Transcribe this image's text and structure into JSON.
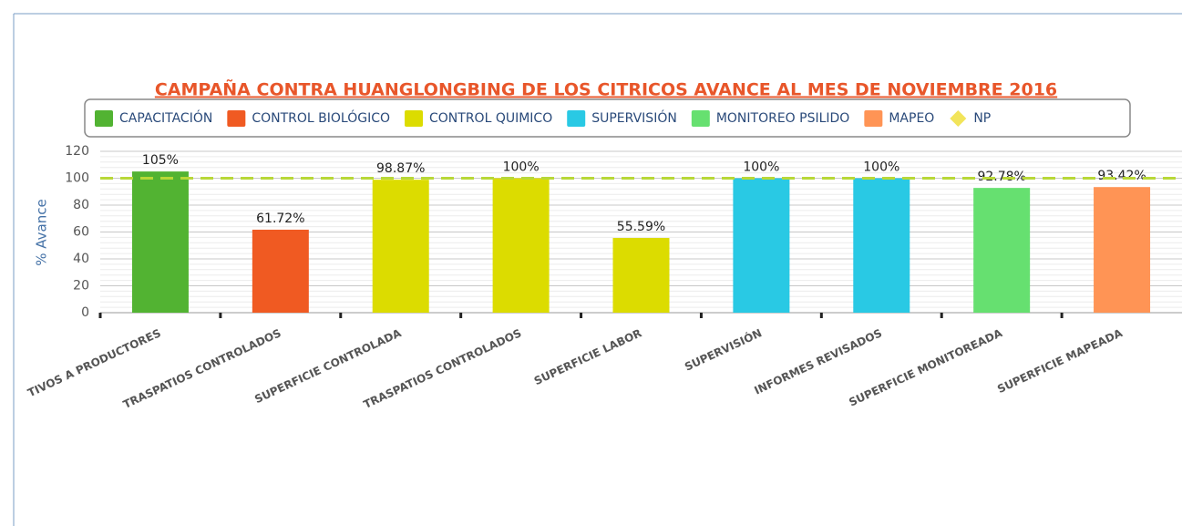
{
  "chart_data": {
    "type": "bar",
    "title": "CAMPAÑA CONTRA HUANGLONGBING DE LOS CITRICOS AVANCE AL MES DE NOVIEMBRE 2016",
    "y_label": "% Avance",
    "categories": [
      "TIVOS A PRODUCTORES",
      "TRASPATIOS CONTROLADOS",
      "SUPERFICIE CONTROLADA",
      "TRASPATIOS CONTROLADOS",
      "SUPERFICIE LABOR",
      "SUPERVISIÓN",
      "INFORMES REVISADOS",
      "SUPERFICIE MONITOREADA",
      "SUPERFICIE MAPEADA"
    ],
    "series": [
      {
        "name": "CAPACITACIÓN",
        "color": "#52b332",
        "values": [
          105,
          null,
          null,
          null,
          null,
          null,
          null,
          null,
          null
        ],
        "value_labels": [
          "105%",
          null,
          null,
          null,
          null,
          null,
          null,
          null,
          null
        ]
      },
      {
        "name": "CONTROL BIOLÓGICO",
        "color": "#f05a22",
        "values": [
          null,
          61.72,
          null,
          null,
          null,
          null,
          null,
          null,
          null
        ],
        "value_labels": [
          null,
          "61.72%",
          null,
          null,
          null,
          null,
          null,
          null,
          null
        ]
      },
      {
        "name": "CONTROL QUIMICO",
        "color": "#dcdc00",
        "values": [
          null,
          null,
          98.87,
          100,
          55.59,
          null,
          null,
          null,
          null
        ],
        "value_labels": [
          null,
          null,
          "98.87%",
          "100%",
          "55.59%",
          null,
          null,
          null,
          null
        ]
      },
      {
        "name": "SUPERVISIÓN",
        "color": "#29c9e4",
        "values": [
          null,
          null,
          null,
          null,
          null,
          100,
          100,
          null,
          null
        ],
        "value_labels": [
          null,
          null,
          null,
          null,
          null,
          "100%",
          "100%",
          null,
          null
        ]
      },
      {
        "name": "MONITOREO PSILIDO",
        "color": "#66e070",
        "values": [
          null,
          null,
          null,
          null,
          null,
          null,
          null,
          92.78,
          null
        ],
        "value_labels": [
          null,
          null,
          null,
          null,
          null,
          null,
          null,
          "92.78%",
          null
        ]
      },
      {
        "name": "MAPEO",
        "color": "#ff9455",
        "values": [
          null,
          null,
          null,
          null,
          null,
          null,
          null,
          null,
          93.42
        ],
        "value_labels": [
          null,
          null,
          null,
          null,
          null,
          null,
          null,
          null,
          "93.42%"
        ]
      },
      {
        "name": "NP",
        "type": "line",
        "color": "#b8d838",
        "values": [
          100,
          100,
          100,
          100,
          100,
          100,
          100,
          100,
          100
        ]
      }
    ],
    "ylim": [
      0,
      120
    ],
    "yticks": [
      0,
      20,
      40,
      60,
      80,
      100,
      120
    ],
    "grid": true
  }
}
